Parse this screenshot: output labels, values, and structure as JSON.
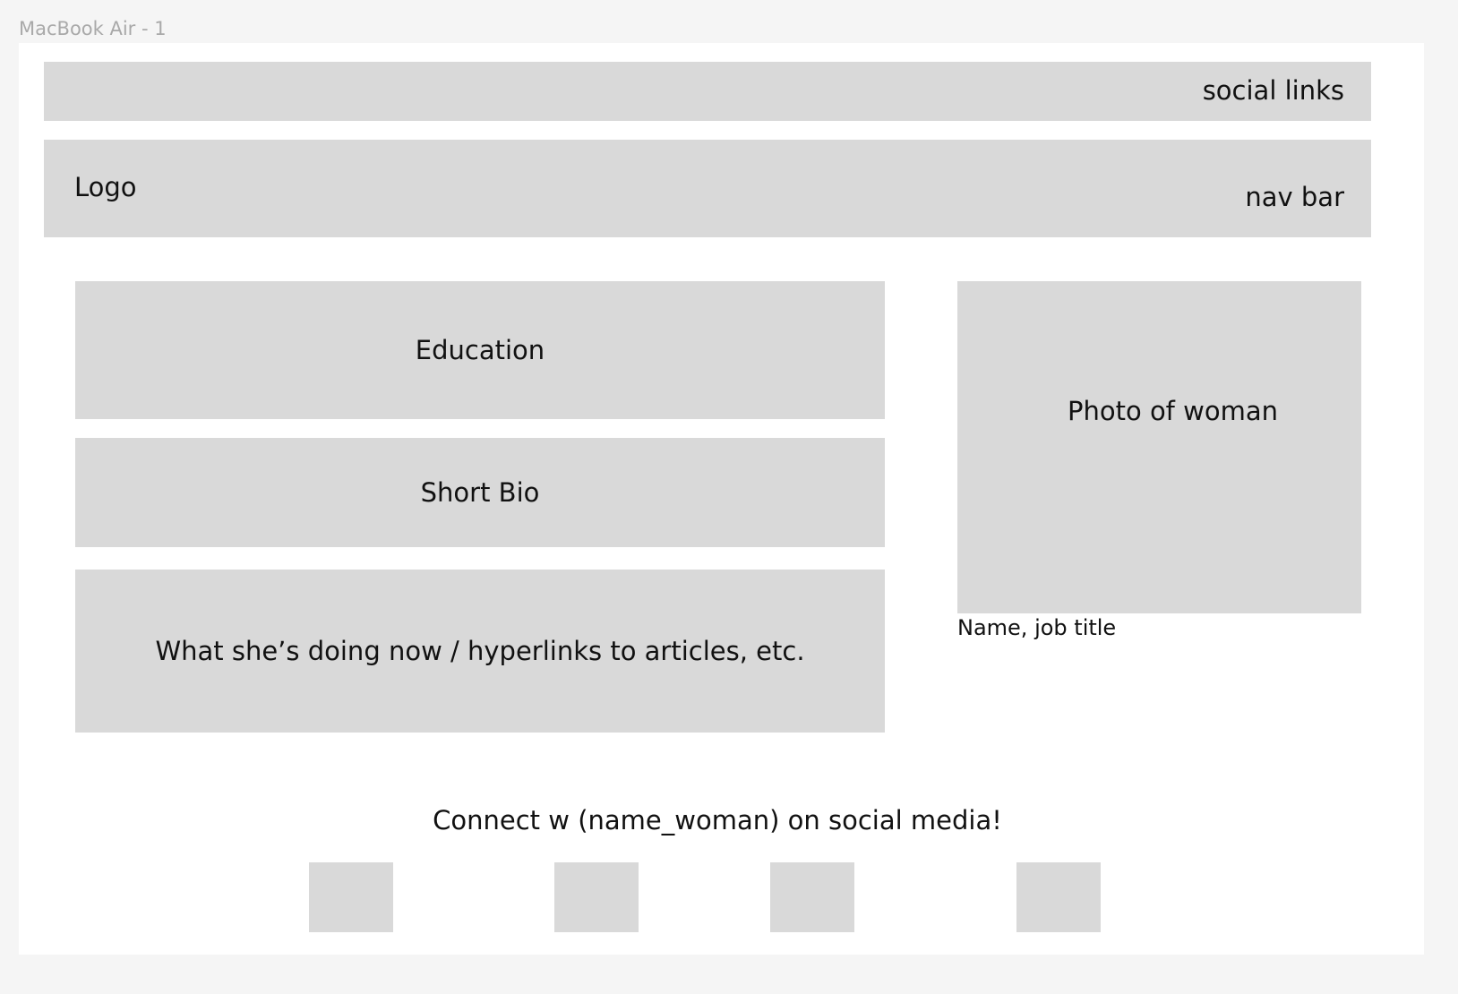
{
  "frame": {
    "label": "MacBook Air - 1"
  },
  "header": {
    "social_links_label": "social links",
    "logo_label": "Logo",
    "nav_label": "nav bar"
  },
  "main": {
    "education_label": "Education",
    "bio_label": "Short Bio",
    "doing_now_label": "What she’s doing now / hyperlinks to articles, etc.",
    "photo_label": "Photo of woman",
    "photo_caption": "Name, job title"
  },
  "footer": {
    "connect_text": "Connect w (name_woman) on social media!",
    "icons": [
      "social-icon-1",
      "social-icon-2",
      "social-icon-3",
      "social-icon-4"
    ]
  },
  "colors": {
    "canvas": "#f5f5f5",
    "frame": "#ffffff",
    "placeholder": "#d9d9d9",
    "label": "#a9a9a9",
    "text": "#111111"
  }
}
